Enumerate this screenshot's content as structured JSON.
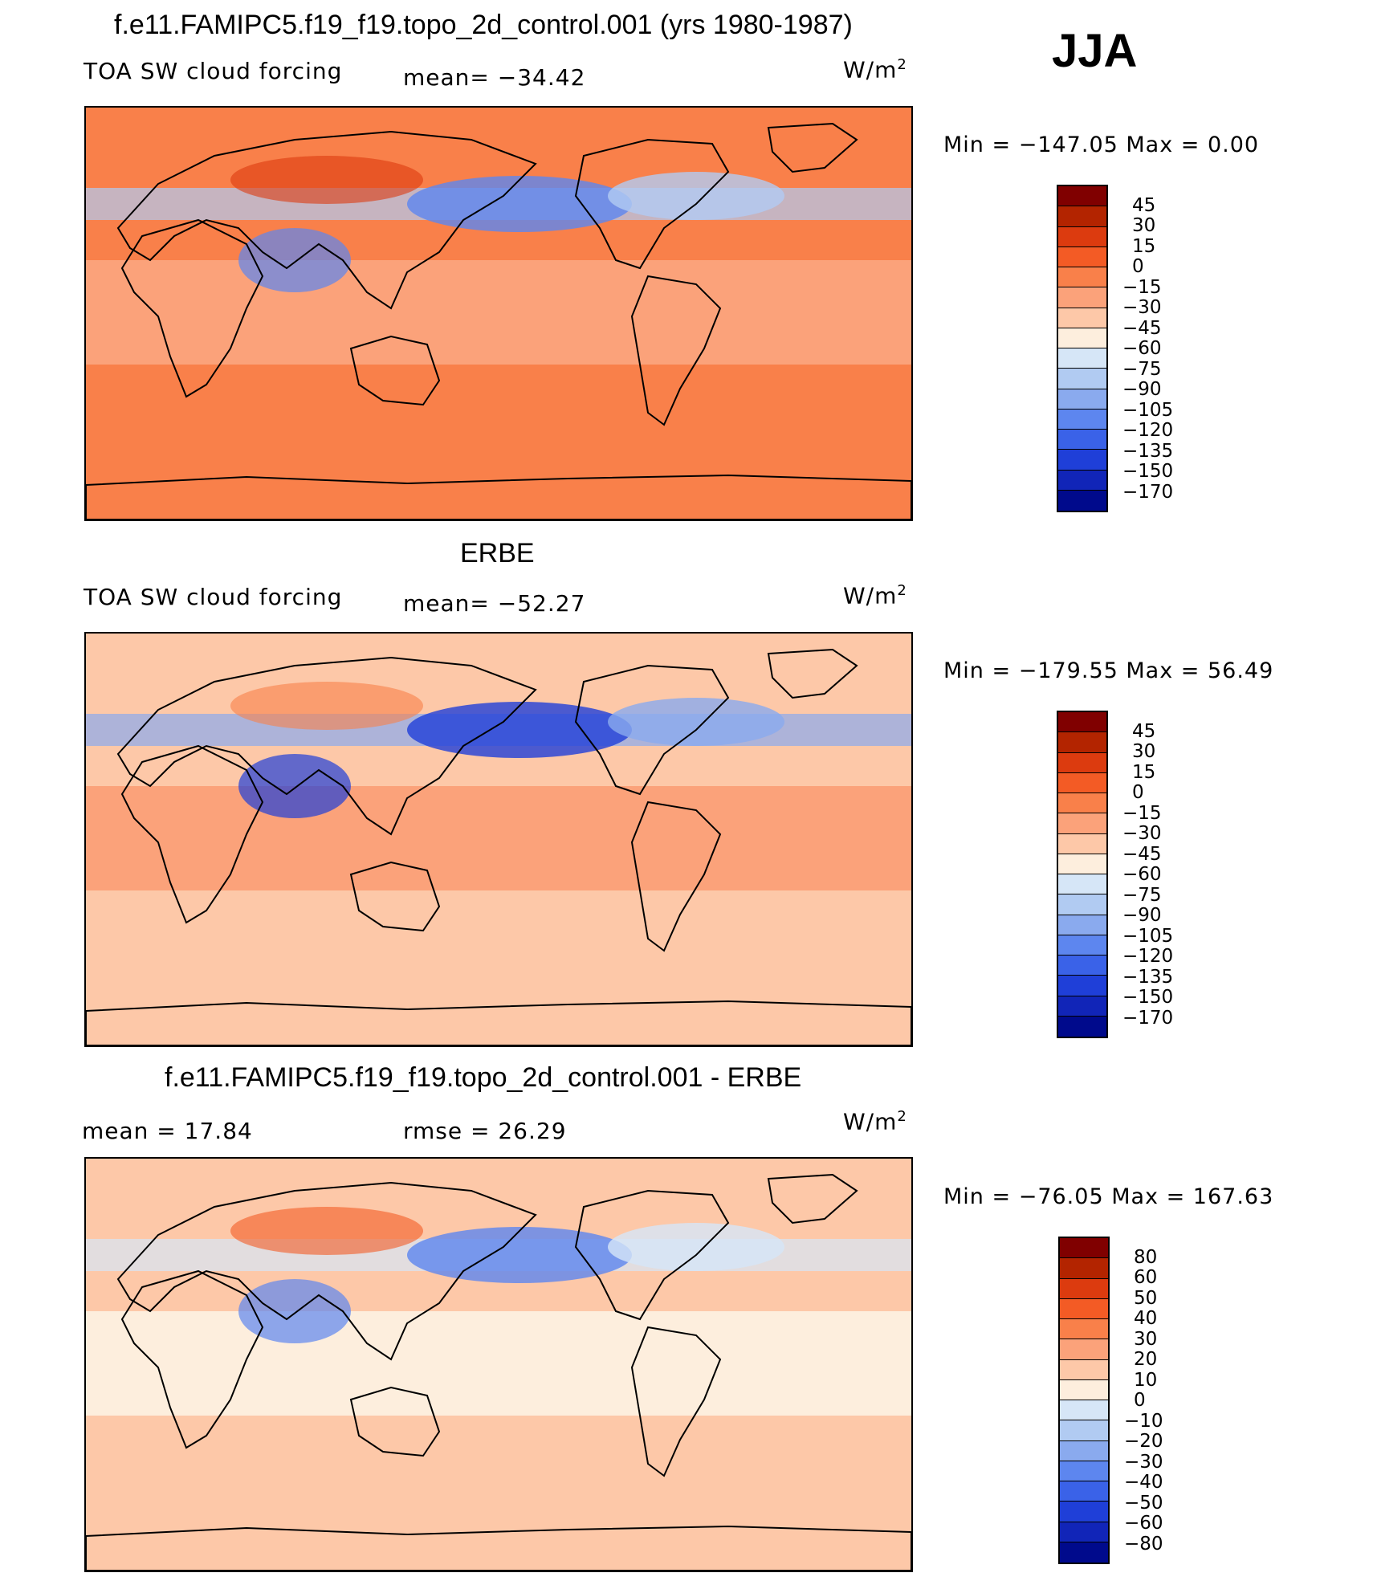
{
  "season": "JJA",
  "panels": [
    {
      "id": "model",
      "title": "f.e11.FAMIPC5.f19_f19.topo_2d_control.001 (yrs 1980-1987)",
      "left_label": "TOA SW cloud forcing",
      "mid_label": "mean= −34.42",
      "unit_base": "W/m",
      "unit_exp": "2",
      "minmax": "Min = −147.05 Max =    0.00",
      "colorbar": {
        "labels": [
          "45",
          "30",
          "15",
          "0",
          "−15",
          "−30",
          "−45",
          "−60",
          "−75",
          "−90",
          "−105",
          "−120",
          "−135",
          "−150",
          "−170"
        ],
        "colors": [
          "#800000",
          "#b32400",
          "#dc3b0f",
          "#f35b25",
          "#f9804a",
          "#fba27a",
          "#fdc8a8",
          "#fdeedd",
          "#d6e6f7",
          "#b1cbf2",
          "#8aaaee",
          "#5d86ef",
          "#3a62e8",
          "#1f3fd8",
          "#1125b8",
          "#000a8c"
        ]
      },
      "map": {
        "ocean": "#f9804a",
        "band_tropics": "#fba27a",
        "land_mark": "#dc3b0f",
        "cool": "#b1cbf2",
        "cooler": "#5d86ef"
      }
    },
    {
      "id": "obs",
      "title": "ERBE",
      "left_label": "TOA SW cloud forcing",
      "mid_label": "mean= −52.27",
      "unit_base": "W/m",
      "unit_exp": "2",
      "minmax": "Min = −179.55 Max =   56.49",
      "colorbar": {
        "labels": [
          "45",
          "30",
          "15",
          "0",
          "−15",
          "−30",
          "−45",
          "−60",
          "−75",
          "−90",
          "−105",
          "−120",
          "−135",
          "−150",
          "−170"
        ],
        "colors": [
          "#800000",
          "#b32400",
          "#dc3b0f",
          "#f35b25",
          "#f9804a",
          "#fba27a",
          "#fdc8a8",
          "#fdeedd",
          "#d6e6f7",
          "#b1cbf2",
          "#8aaaee",
          "#5d86ef",
          "#3a62e8",
          "#1f3fd8",
          "#1125b8",
          "#000a8c"
        ]
      },
      "map": {
        "ocean": "#fdc8a8",
        "band_tropics": "#fba27a",
        "land_mark": "#f9804a",
        "cool": "#8aaaee",
        "cooler": "#1f3fd8"
      }
    },
    {
      "id": "diff",
      "title": "f.e11.FAMIPC5.f19_f19.topo_2d_control.001 - ERBE",
      "left_label": "mean =   17.84",
      "mid_label": "rmse =   26.29",
      "unit_base": "W/m",
      "unit_exp": "2",
      "minmax": "Min = −76.05 Max = 167.63",
      "colorbar": {
        "labels": [
          "80",
          "60",
          "50",
          "40",
          "30",
          "20",
          "10",
          "0",
          "−10",
          "−20",
          "−30",
          "−40",
          "−50",
          "−60",
          "−80"
        ],
        "colors": [
          "#800000",
          "#b32400",
          "#dc3b0f",
          "#f35b25",
          "#f9804a",
          "#fba27a",
          "#fdc8a8",
          "#fdeedd",
          "#d6e6f7",
          "#b1cbf2",
          "#8aaaee",
          "#5d86ef",
          "#3a62e8",
          "#1f3fd8",
          "#1125b8",
          "#000a8c"
        ]
      },
      "map": {
        "ocean": "#fdc8a8",
        "band_tropics": "#fdeedd",
        "land_mark": "#f35b25",
        "cool": "#d6e6f7",
        "cooler": "#5d86ef"
      }
    }
  ]
}
